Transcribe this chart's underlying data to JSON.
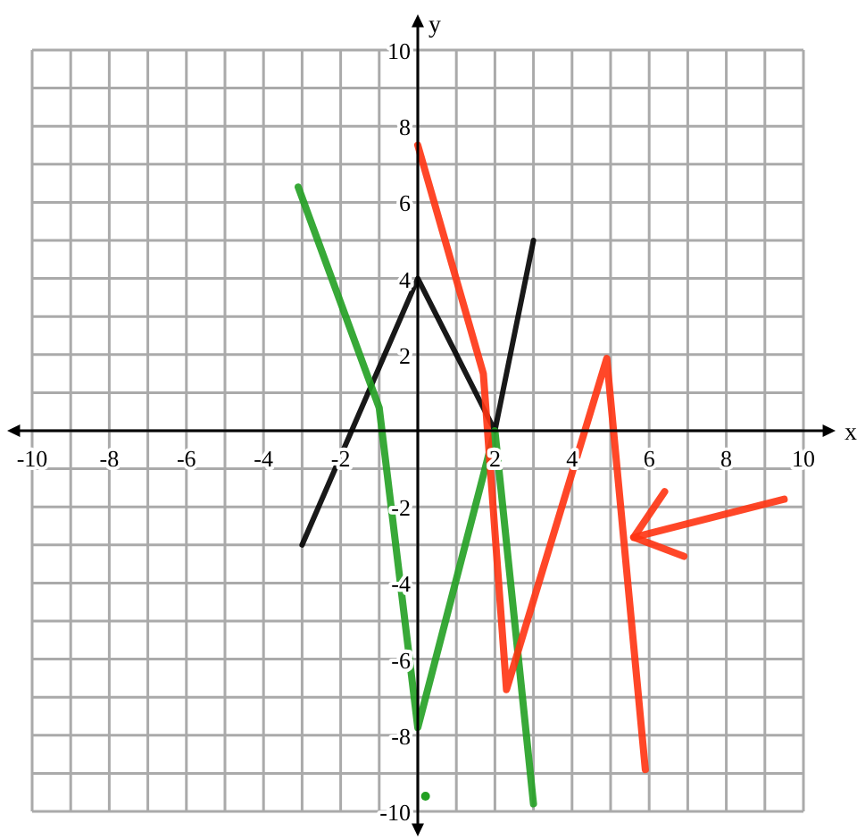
{
  "chart_data": {
    "type": "line",
    "xlabel": "x",
    "ylabel": "y",
    "xlim": [
      -10,
      10
    ],
    "ylim": [
      -10,
      10
    ],
    "xticks": [
      -10,
      {
        "value": -9,
        "label": null
      },
      -8,
      {
        "value": -7,
        "label": null
      },
      -6,
      {
        "value": -5,
        "label": null
      },
      -4,
      {
        "value": -3,
        "label": null
      },
      -2,
      {
        "value": -1,
        "label": null
      },
      {
        "value": 0,
        "label": null
      },
      {
        "value": 1,
        "label": null
      },
      2,
      {
        "value": 3,
        "label": null
      },
      4,
      {
        "value": 5,
        "label": null
      },
      6,
      {
        "value": 7,
        "label": null
      },
      8,
      {
        "value": 9,
        "label": null
      },
      10
    ],
    "yticks": [
      -10,
      {
        "value": -9,
        "label": null
      },
      -8,
      {
        "value": -7,
        "label": null
      },
      -6,
      {
        "value": -5,
        "label": null
      },
      -4,
      {
        "value": -3,
        "label": null
      },
      -2,
      {
        "value": -1,
        "label": null
      },
      {
        "value": 0,
        "label": null
      },
      {
        "value": 1,
        "label": null
      },
      2,
      {
        "value": 3,
        "label": null
      },
      4,
      {
        "value": 5,
        "label": null
      },
      6,
      {
        "value": 7,
        "label": null
      },
      8,
      {
        "value": 9,
        "label": null
      },
      10
    ],
    "grid": true,
    "marker": "none",
    "line_style": "solid",
    "series": [
      {
        "color": "#000000",
        "x": [
          -3,
          0,
          2,
          3
        ],
        "values": [
          -3,
          4,
          0,
          5
        ]
      },
      {
        "color": "#22a022",
        "x": [
          -3.1,
          -1,
          0,
          2,
          3
        ],
        "values": [
          6.4,
          0.6,
          -7.8,
          0,
          -9.8
        ]
      },
      {
        "color": "#ff3311",
        "x": [
          0,
          1.7,
          2.3,
          4.9,
          5.9
        ],
        "values": [
          7.5,
          1.5,
          -6.8,
          1.9,
          -8.9
        ]
      },
      {
        "type": "scatter",
        "marker": "circle",
        "color": "#22a022",
        "x": [
          0.2
        ],
        "values": [
          -9.6
        ]
      }
    ]
  }
}
